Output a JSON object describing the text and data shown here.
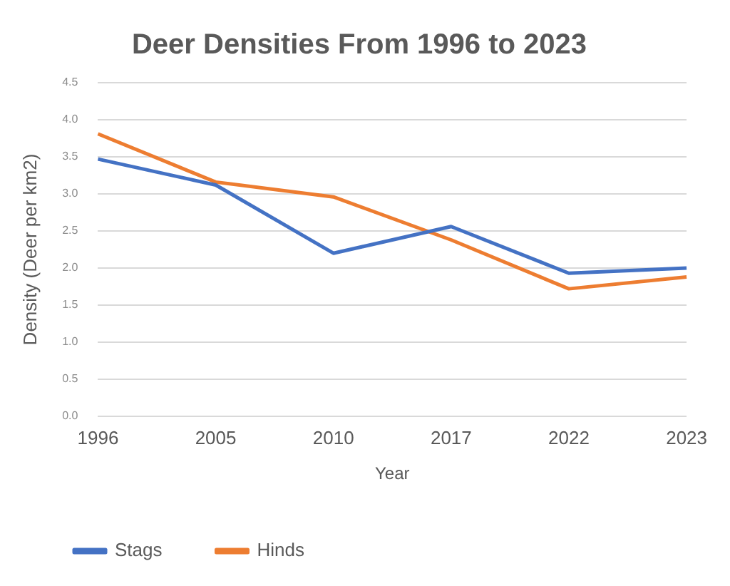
{
  "chart_data": {
    "type": "line",
    "title": "Deer Densities From 1996 to 2023",
    "xlabel": "Year",
    "ylabel": "Density (Deer per km2)",
    "categories": [
      "1996",
      "2005",
      "2010",
      "2017",
      "2022",
      "2023"
    ],
    "series": [
      {
        "name": "Stags",
        "color": "#4472c4",
        "values": [
          3.47,
          3.12,
          2.2,
          2.56,
          1.93,
          2.0
        ]
      },
      {
        "name": "Hinds",
        "color": "#ed7d31",
        "values": [
          3.81,
          3.16,
          2.96,
          2.38,
          1.72,
          1.88
        ]
      }
    ],
    "ylim": [
      0,
      4.5
    ],
    "yticks": [
      {
        "value": 0,
        "label": "0.0"
      },
      {
        "value": 0.5,
        "label": "0.5"
      },
      {
        "value": 1,
        "label": "1.0"
      },
      {
        "value": 1.5,
        "label": "1.5"
      },
      {
        "value": 2,
        "label": "2.0"
      },
      {
        "value": 2.5,
        "label": "2.5"
      },
      {
        "value": 3,
        "label": "3.0"
      },
      {
        "value": 3.5,
        "label": "3.5"
      },
      {
        "value": 4,
        "label": "4.0"
      },
      {
        "value": 4.5,
        "label": "4.5"
      }
    ],
    "grid": "y",
    "legend": "bottom",
    "marker": "none",
    "line_style": "solid"
  }
}
